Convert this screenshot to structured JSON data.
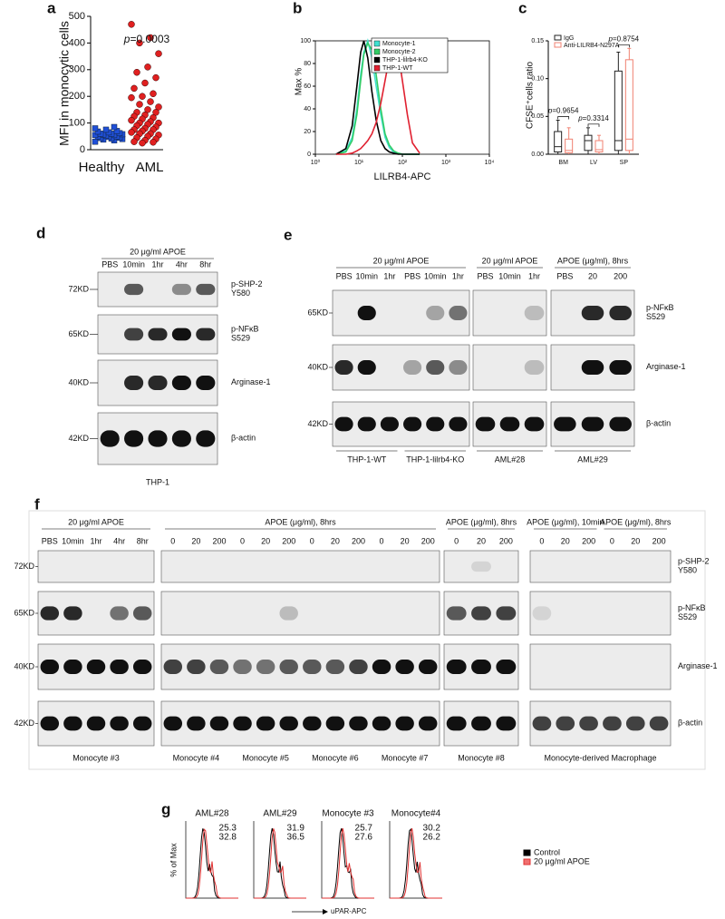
{
  "chart_data": [
    {
      "type": "scatter",
      "panel": "a",
      "ylabel": "MFI  in monocytic cells",
      "categories": [
        "Healthy",
        "AML"
      ],
      "series": [
        {
          "color": "#1f4fd8",
          "marker": "square",
          "values": [
            30,
            35,
            38,
            40,
            42,
            44,
            45,
            48,
            50,
            50,
            52,
            55,
            55,
            57,
            58,
            60,
            60,
            62,
            65,
            68,
            70,
            75,
            80,
            85
          ]
        },
        {
          "color": "#e02020",
          "marker": "circle",
          "values": [
            470,
            420,
            400,
            360,
            310,
            290,
            270,
            250,
            230,
            210,
            200,
            195,
            180,
            170,
            160,
            150,
            140,
            140,
            130,
            125,
            120,
            115,
            110,
            105,
            100,
            100,
            95,
            90,
            85,
            80,
            75,
            75,
            70,
            65,
            60,
            60,
            55,
            50,
            45,
            40,
            35,
            30,
            28,
            25
          ]
        }
      ],
      "ylim": [
        0,
        500
      ],
      "yticks": [
        0,
        100,
        200,
        300,
        400,
        500
      ],
      "annotation": [
        "p",
        "=0.0003"
      ]
    },
    {
      "type": "line",
      "panel": "b",
      "xlabel": "LILRB4-APC",
      "ylabel": "Max %",
      "xscale": "log",
      "xlim": [
        1,
        10000
      ],
      "xticks": [
        {
          "value": 1,
          "label": "10⁰"
        },
        {
          "value": 10,
          "label": "10¹"
        },
        {
          "value": 100,
          "label": "10²"
        },
        {
          "value": 1000,
          "label": "10³"
        },
        {
          "value": 10000,
          "label": "10⁴"
        }
      ],
      "ylim": [
        0,
        100
      ],
      "yticks": [
        0,
        20,
        40,
        60,
        80,
        100
      ],
      "legend": "upper right",
      "x": [
        3,
        5,
        7,
        9,
        11,
        13,
        16,
        20,
        25,
        32,
        40,
        50,
        63,
        80,
        100,
        130,
        170,
        250
      ],
      "series": [
        {
          "name": "Monocyte-1",
          "color": "#40e0d0",
          "values": [
            0,
            3,
            15,
            40,
            70,
            90,
            100,
            85,
            60,
            35,
            15,
            6,
            2,
            1,
            0,
            0,
            0,
            0
          ]
        },
        {
          "name": "Monocyte-2",
          "color": "#33cc66",
          "values": [
            0,
            2,
            12,
            35,
            65,
            88,
            98,
            92,
            70,
            40,
            18,
            8,
            3,
            1,
            0,
            0,
            0,
            0
          ]
        },
        {
          "name": "THP-1-lilrb4-KO",
          "color": "#000000",
          "values": [
            0,
            5,
            25,
            60,
            90,
            100,
            85,
            55,
            30,
            12,
            5,
            2,
            1,
            0,
            0,
            0,
            0,
            0
          ]
        },
        {
          "name": "THP-1-WT",
          "color": "#e02030",
          "values": [
            0,
            0,
            1,
            3,
            5,
            8,
            12,
            18,
            28,
            45,
            65,
            85,
            100,
            90,
            65,
            35,
            10,
            1
          ]
        }
      ]
    },
    {
      "type": "box",
      "panel": "c",
      "ylabel": "CFSE⁺cells ratio",
      "categories": [
        "BM",
        "LV",
        "SP"
      ],
      "ylim": [
        0,
        0.15
      ],
      "yticks": [
        {
          "value": 0,
          "label": "0.00"
        },
        {
          "value": 0.05,
          "label": "0.05"
        },
        {
          "value": 0.1,
          "label": "0.10"
        },
        {
          "value": 0.15,
          "label": "0.15"
        }
      ],
      "legend": "upper left",
      "series": [
        {
          "name": "IgG",
          "color": "#222222",
          "values": [
            {
              "min": 0,
              "q1": 0.003,
              "median": 0.01,
              "q3": 0.03,
              "max": 0.045
            },
            {
              "min": 0,
              "q1": 0.005,
              "median": 0.018,
              "q3": 0.025,
              "max": 0.035
            },
            {
              "min": 0,
              "q1": 0.005,
              "median": 0.018,
              "q3": 0.11,
              "max": 0.135
            }
          ]
        },
        {
          "name": "Anti-LILRB4-N297A",
          "color": "#f08070",
          "values": [
            {
              "min": 0,
              "q1": 0.002,
              "median": 0.005,
              "q3": 0.02,
              "max": 0.035
            },
            {
              "min": 0,
              "q1": 0.003,
              "median": 0.006,
              "q3": 0.018,
              "max": 0.025
            },
            {
              "min": 0,
              "q1": 0.005,
              "median": 0.02,
              "q3": 0.125,
              "max": 0.14
            }
          ]
        }
      ],
      "annotations": [
        [
          "p",
          "=0.9654"
        ],
        [
          "p",
          "=0.3314"
        ],
        [
          "p",
          "=0.8754"
        ]
      ]
    },
    {
      "type": "histogram",
      "panel": "g",
      "ylabel": "% of Max",
      "xlabel": "uPAR-APC",
      "legend": "right",
      "series": [
        {
          "name": "Control",
          "color": "#000000"
        },
        {
          "name": "20 μg/ml APOE",
          "color": "#e03030"
        }
      ],
      "samples": [
        {
          "title": "AML#28",
          "values": [
            25.3,
            32.8
          ]
        },
        {
          "title": "AML#29",
          "values": [
            31.9,
            36.5
          ]
        },
        {
          "title": "Monocyte #3",
          "values": [
            25.7,
            27.6
          ]
        },
        {
          "title": "Monocyte#4",
          "values": [
            30.2,
            26.2
          ]
        }
      ]
    }
  ],
  "blots": [
    {
      "panel": "d",
      "groups": [
        {
          "treatments": [
            "20 μg/ml APOE"
          ],
          "lanes": [
            "PBS",
            "10min",
            "1hr",
            "4hr",
            "8hr"
          ],
          "cells": [
            "THP-1"
          ]
        }
      ],
      "markers": [
        "72KD",
        "65KD",
        "40KD",
        "42KD"
      ],
      "proteins": [
        [
          "p-SHP-2",
          "Y580"
        ],
        [
          "p-NFκB",
          "S529"
        ],
        [
          "Arginase-1"
        ],
        [
          "β-actin"
        ]
      ]
    },
    {
      "panel": "e",
      "groups": [
        {
          "treatments": [
            "20 μg/ml APOE"
          ],
          "lanes": [
            "PBS",
            "10min",
            "1hr",
            "PBS",
            "10min",
            "1hr"
          ],
          "cells": [
            "THP-1-WT",
            "THP-1-lilrb4-KO"
          ]
        },
        {
          "treatments": [
            "20 μg/ml APOE"
          ],
          "lanes": [
            "PBS",
            "10min",
            "1hr"
          ],
          "cells": [
            "AML#28"
          ]
        },
        {
          "treatments": [
            "APOE (μg/ml), 8hrs"
          ],
          "lanes": [
            "PBS",
            20,
            200
          ],
          "cells": [
            "AML#29"
          ]
        }
      ],
      "markers": [
        "65KD",
        "40KD",
        "42KD"
      ],
      "proteins": [
        [
          "p-NFκB",
          "S529"
        ],
        [
          "Arginase-1"
        ],
        [
          "β-actin"
        ]
      ]
    },
    {
      "panel": "f",
      "groups": [
        {
          "treatments": [
            "20 μg/ml APOE"
          ],
          "lanes": [
            "PBS",
            "10min",
            "1hr",
            "4hr",
            "8hr"
          ],
          "cells": [
            "Monocyte #3"
          ]
        },
        {
          "treatments": [
            "APOE (μg/ml), 8hrs"
          ],
          "lanes": [
            0,
            20,
            200,
            0,
            20,
            200,
            0,
            20,
            200,
            0,
            20,
            200
          ],
          "cells": [
            "Monocyte #4",
            "Monocyte #5",
            "Monocyte #6",
            "Monocyte #7"
          ]
        },
        {
          "treatments": [
            "APOE (μg/ml), 8hrs"
          ],
          "lanes": [
            0,
            20,
            200
          ],
          "cells": [
            "Monocyte #8"
          ]
        },
        {
          "treatments": [
            "APOE (μg/ml), 10min",
            "APOE (μg/ml), 8hrs"
          ],
          "lanes": [
            0,
            20,
            200,
            0,
            20,
            200
          ],
          "cells": [
            "Monocyte-derived Macrophage"
          ]
        }
      ],
      "markers": [
        "72KD",
        "65KD",
        "40KD",
        "42KD"
      ],
      "proteins": [
        [
          "p-SHP-2",
          "Y580"
        ],
        [
          "p-NFκB",
          "S529"
        ],
        [
          "Arginase-1"
        ],
        [
          "β-actin"
        ]
      ]
    }
  ]
}
